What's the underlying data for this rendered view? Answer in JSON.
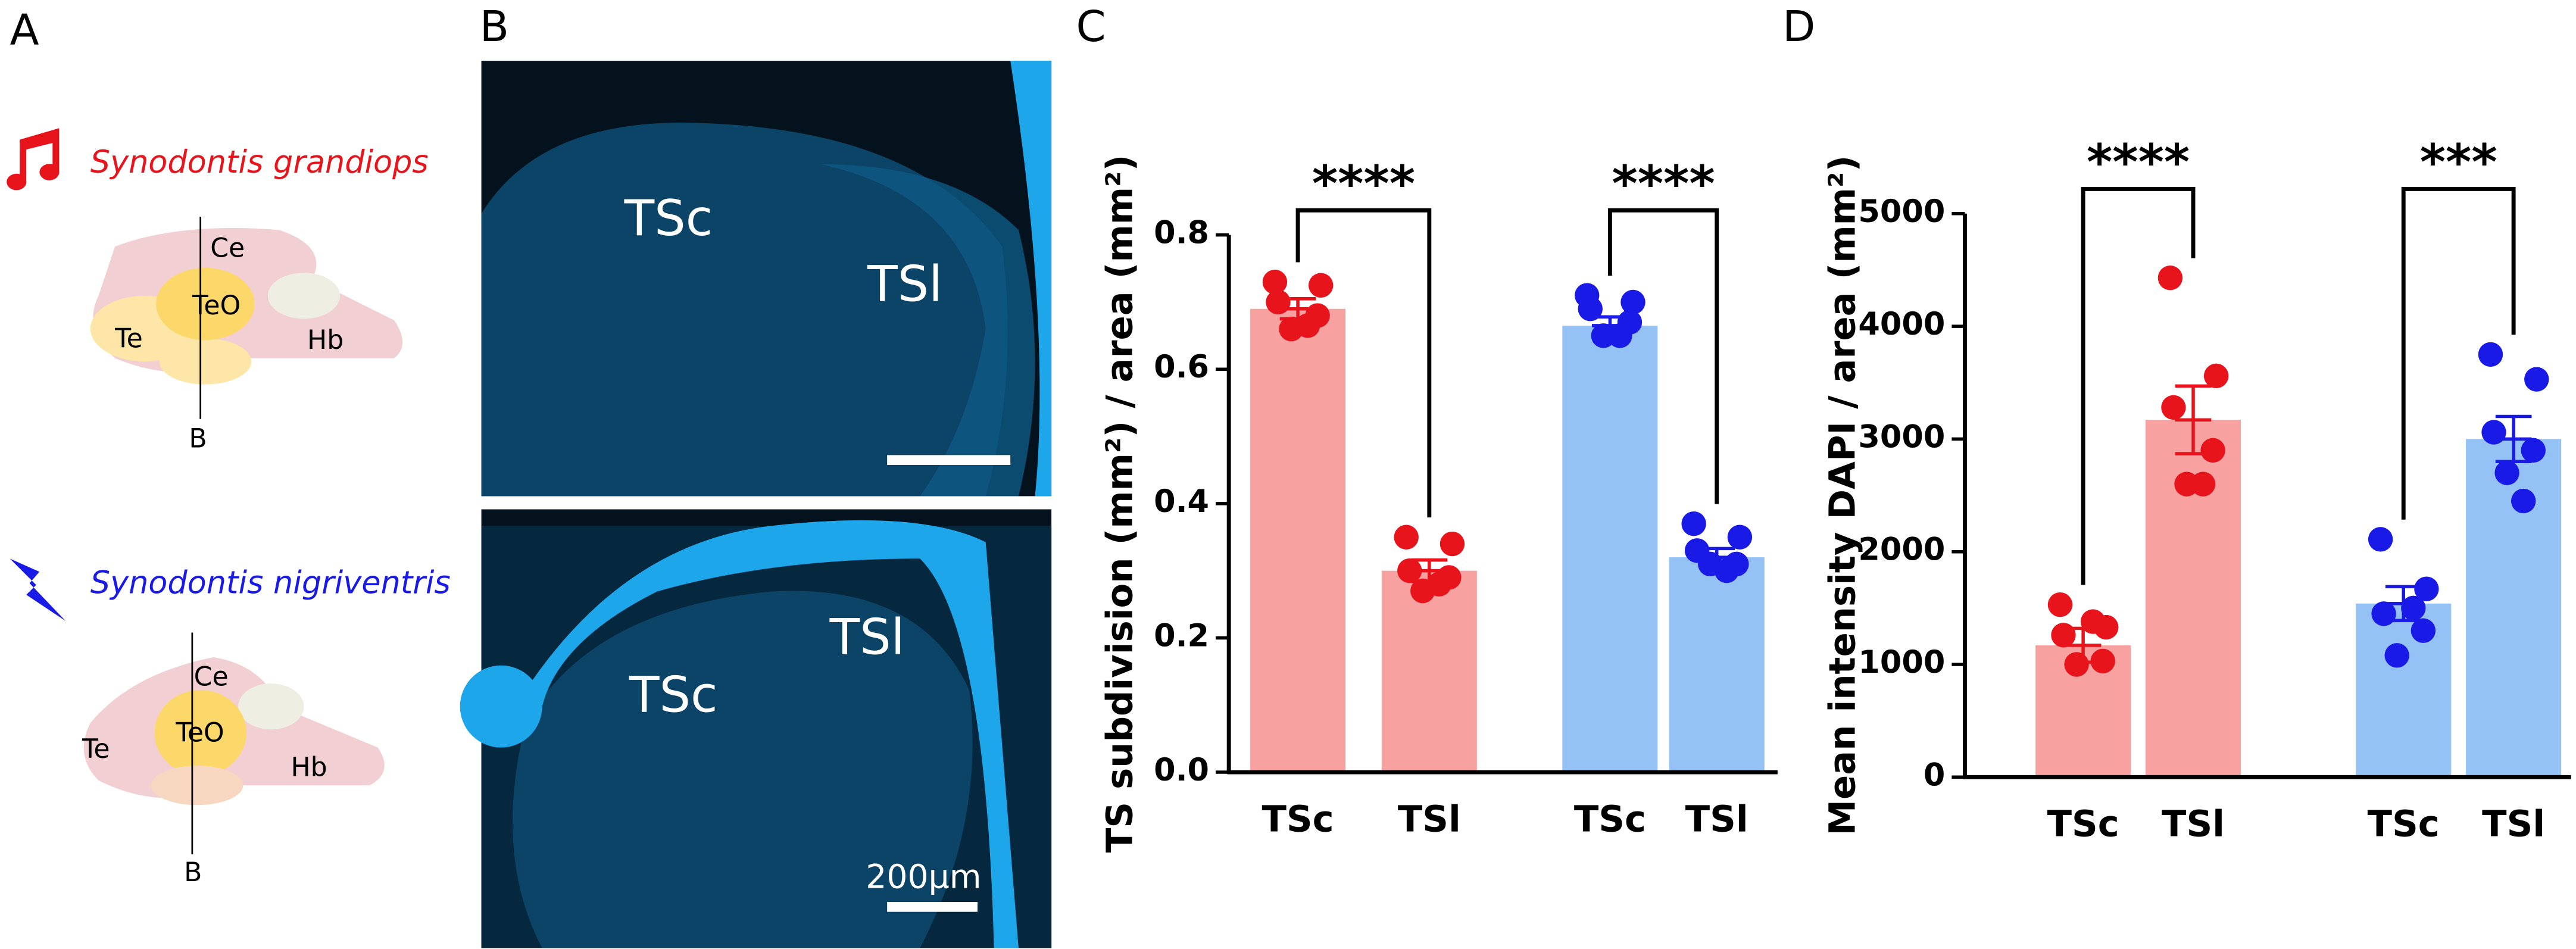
{
  "panels": {
    "a": {
      "letter": "A",
      "species": [
        {
          "name": "Synodontis grandiops",
          "regions": [
            "Ce",
            "TeO",
            "Te",
            "Hb"
          ],
          "section": "B"
        },
        {
          "name": "Synodontis nigriventris",
          "regions": [
            "Ce",
            "TeO",
            "Te",
            "Hb"
          ],
          "section": "B"
        }
      ]
    },
    "b": {
      "letter": "B",
      "top": [
        "TSc",
        "TSl"
      ],
      "bottom": [
        "TSc",
        "TSl"
      ],
      "scale": "200µm"
    }
  },
  "chart_data": [
    {
      "type": "bar",
      "letter": "C",
      "ylabel": "TS subdivision (mm²) / area (mm²)",
      "categories": [
        "TSc",
        "TSl",
        "TSc",
        "TSl"
      ],
      "values": [
        0.69,
        0.3,
        0.665,
        0.32
      ],
      "errors": [
        0.015,
        0.016,
        0.013,
        0.013
      ],
      "points": [
        [
          0.73,
          0.725,
          0.7,
          0.68,
          0.66,
          0.665
        ],
        [
          0.35,
          0.34,
          0.3,
          0.29,
          0.27,
          0.28
        ],
        [
          0.71,
          0.7,
          0.69,
          0.67,
          0.65,
          0.65
        ],
        [
          0.37,
          0.35,
          0.33,
          0.31,
          0.31,
          0.3
        ]
      ],
      "colors": [
        "#f7a1a1",
        "#f7a1a1",
        "#94c2f5",
        "#94c2f5"
      ],
      "point_colors": [
        "#e8141c",
        "#e8141c",
        "#1a1ae6",
        "#1a1ae6"
      ],
      "annotations": [
        "****",
        "****"
      ],
      "ylim": [
        0,
        0.8
      ],
      "yticks": [
        {
          "value": 0,
          "label": "0.0"
        },
        0.2,
        0.4,
        0.6,
        0.8
      ]
    },
    {
      "type": "bar",
      "letter": "D",
      "ylabel": "Mean intensity DAPI / area (mm²)",
      "categories": [
        "TSc",
        "TSl",
        "TSc",
        "TSl"
      ],
      "values": [
        1170,
        3170,
        1540,
        3000
      ],
      "errors": [
        150,
        300,
        150,
        200
      ],
      "points": [
        [
          1530,
          1330,
          1260,
          1030,
          1000,
          1380
        ],
        [
          4430,
          3560,
          3280,
          2900,
          2600,
          2600
        ],
        [
          2110,
          1670,
          1450,
          1300,
          1080,
          1500
        ],
        [
          3750,
          3530,
          3060,
          2900,
          2700,
          2450
        ]
      ],
      "colors": [
        "#f7a1a1",
        "#f7a1a1",
        "#94c2f5",
        "#94c2f5"
      ],
      "point_colors": [
        "#e8141c",
        "#e8141c",
        "#1a1ae6",
        "#1a1ae6"
      ],
      "annotations": [
        "****",
        "***"
      ],
      "ylim": [
        0,
        5000
      ],
      "yticks": [
        0,
        1000,
        2000,
        3000,
        4000,
        5000
      ]
    }
  ]
}
